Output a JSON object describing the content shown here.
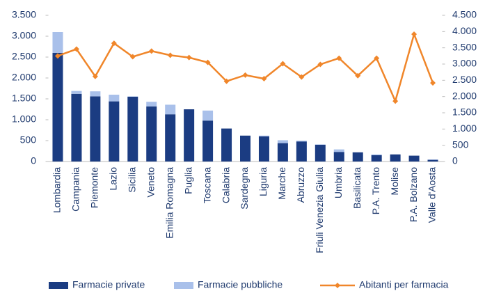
{
  "chart_data": {
    "type": "bar-line",
    "categories": [
      "Lombardia",
      "Campania",
      "Piemonte",
      "Lazio",
      "Sicilia",
      "Veneto",
      "Emilia Romagna",
      "Puglia",
      "Toscana",
      "Calabria",
      "Sardegna",
      "Liguria",
      "Marche",
      "Abruzzo",
      "Friuli Venezia Giulia",
      "Umbria",
      "Basilicata",
      "P.A. Trento",
      "Molise",
      "P.A. Bolzano",
      "Valle d'Aosta"
    ],
    "series": [
      {
        "name": "Farmacie private",
        "type": "bar",
        "color": "#1b3c82",
        "values": [
          2600,
          1620,
          1560,
          1440,
          1550,
          1320,
          1130,
          1250,
          980,
          790,
          620,
          600,
          440,
          480,
          400,
          230,
          220,
          150,
          170,
          140,
          40
        ]
      },
      {
        "name": "Farmacie pubbliche",
        "type": "bar",
        "color": "#a9c0ea",
        "values": [
          500,
          70,
          120,
          160,
          10,
          110,
          230,
          0,
          240,
          0,
          0,
          20,
          70,
          20,
          10,
          60,
          0,
          20,
          0,
          0,
          10
        ]
      },
      {
        "name": "Abitanti per farmacia",
        "type": "line",
        "axis": "y2",
        "color": "#f0862a",
        "values": [
          3250,
          3460,
          2620,
          3640,
          3225,
          3400,
          3270,
          3200,
          3050,
          2470,
          2660,
          2550,
          3010,
          2600,
          2990,
          3180,
          2640,
          3180,
          1860,
          3920,
          2420
        ]
      }
    ],
    "ylim": [
      0,
      3500
    ],
    "yticks": [
      0,
      500,
      {
        "value": 1000,
        "label": "1.000"
      },
      {
        "value": 1500,
        "label": "1.500"
      },
      {
        "value": 2000,
        "label": "2.000"
      },
      {
        "value": 2500,
        "label": "2.500"
      },
      {
        "value": 3000,
        "label": "3.000"
      },
      {
        "value": 3500,
        "label": "3.500"
      }
    ],
    "y2lim": [
      0,
      4500
    ],
    "y2ticks": [
      0,
      500,
      {
        "value": 1000,
        "label": "1.000"
      },
      {
        "value": 1500,
        "label": "1.500"
      },
      {
        "value": 2000,
        "label": "2.000"
      },
      {
        "value": 2500,
        "label": "2.500"
      },
      {
        "value": 3000,
        "label": "3.000"
      },
      {
        "value": 3500,
        "label": "3.500"
      },
      {
        "value": 4000,
        "label": "4.000"
      },
      {
        "value": 4500,
        "label": "4.500"
      }
    ],
    "legend": "bottom",
    "grid": false
  }
}
